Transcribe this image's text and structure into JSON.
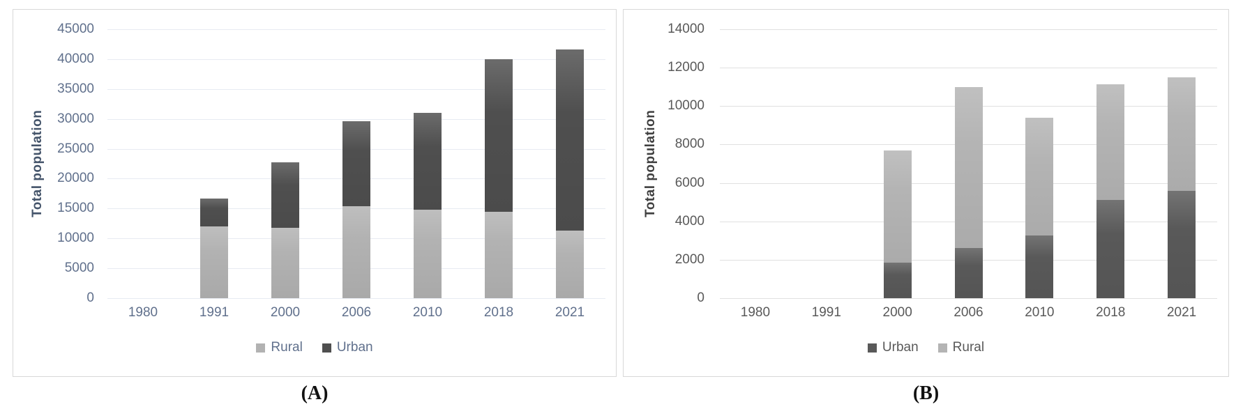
{
  "figure": {
    "label_a": "(A)",
    "label_b": "(B)"
  },
  "chart_data": [
    {
      "id": "A",
      "type": "bar",
      "stacked": true,
      "title": "",
      "xlabel": "",
      "ylabel": "Total population",
      "categories": [
        "1980",
        "1991",
        "2000",
        "2006",
        "2010",
        "2018",
        "2021"
      ],
      "series": [
        {
          "name": "Rural",
          "color": "#b2b2b2",
          "values": [
            0,
            12000,
            11800,
            15400,
            14800,
            14500,
            11300
          ]
        },
        {
          "name": "Urban",
          "color": "#4f4f4f",
          "values": [
            0,
            4700,
            10900,
            14200,
            16200,
            25500,
            30300
          ]
        }
      ],
      "legend": [
        "Rural",
        "Urban"
      ],
      "legend_position": "bottom",
      "ylim": [
        0,
        45000
      ],
      "ytick_step": 5000,
      "grid": true,
      "grid_color": "#e7ebf2",
      "text_color": "#60708c",
      "ylabel_color": "#44546a"
    },
    {
      "id": "B",
      "type": "bar",
      "stacked": true,
      "title": "",
      "xlabel": "",
      "ylabel": "Total population",
      "categories": [
        "1980",
        "1991",
        "2000",
        "2006",
        "2010",
        "2018",
        "2021"
      ],
      "series": [
        {
          "name": "Urban",
          "color": "#595959",
          "values": [
            0,
            0,
            1850,
            2600,
            3250,
            5100,
            5600
          ]
        },
        {
          "name": "Rural",
          "color": "#b4b4b4",
          "values": [
            0,
            0,
            5850,
            8400,
            6150,
            6050,
            5900
          ]
        }
      ],
      "legend": [
        "Urban",
        "Rural"
      ],
      "legend_position": "bottom",
      "ylim": [
        0,
        14000
      ],
      "ytick_step": 2000,
      "grid": true,
      "grid_color": "#e0e0e0",
      "text_color": "#595959",
      "ylabel_color": "#404040"
    }
  ]
}
